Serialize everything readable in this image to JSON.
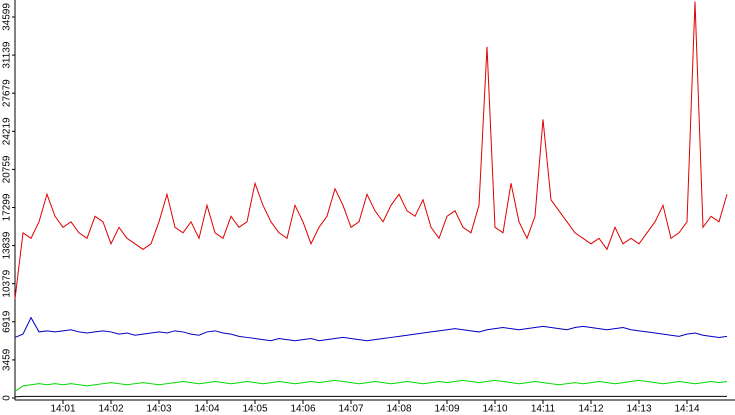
{
  "chart_data": {
    "type": "line",
    "categories": [
      null,
      null,
      null,
      null,
      null,
      null,
      "14:01",
      null,
      null,
      null,
      null,
      null,
      "14:02",
      null,
      null,
      null,
      null,
      null,
      "14:03",
      null,
      null,
      null,
      null,
      null,
      "14:04",
      null,
      null,
      null,
      null,
      null,
      "14:05",
      null,
      null,
      null,
      null,
      null,
      "14:06",
      null,
      null,
      null,
      null,
      null,
      "14:07",
      null,
      null,
      null,
      null,
      null,
      "14:08",
      null,
      null,
      null,
      null,
      null,
      "14:09",
      null,
      null,
      null,
      null,
      null,
      "14:10",
      null,
      null,
      null,
      null,
      null,
      "14:11",
      null,
      null,
      null,
      null,
      null,
      "14:12",
      null,
      null,
      null,
      null,
      null,
      "14:13",
      null,
      null,
      null,
      null,
      null,
      "14:14",
      null,
      null,
      null,
      null,
      null
    ],
    "series": [
      {
        "color": "#e00000",
        "values": [
          9000,
          15000,
          14500,
          16000,
          18500,
          16500,
          15500,
          16000,
          15000,
          14500,
          16500,
          16000,
          14000,
          15500,
          14500,
          14000,
          13500,
          14000,
          16000,
          18500,
          15500,
          15000,
          16000,
          14500,
          17500,
          15000,
          14500,
          16500,
          15500,
          16000,
          19500,
          17500,
          16000,
          15000,
          14500,
          17500,
          16000,
          14000,
          15500,
          16500,
          19000,
          17500,
          15500,
          16000,
          18500,
          17000,
          16000,
          17500,
          18500,
          17000,
          16500,
          18000,
          15500,
          14500,
          16500,
          17000,
          15500,
          15000,
          17500,
          31900,
          15500,
          15000,
          19500,
          16000,
          14500,
          16500,
          25300,
          18000,
          17000,
          16000,
          15000,
          14500,
          14000,
          14500,
          13500,
          15500,
          14000,
          14500,
          14000,
          15000,
          16000,
          17500,
          14500,
          15000,
          16000,
          36000,
          15500,
          16500,
          16000,
          18500
        ]
      },
      {
        "color": "#0000c0",
        "values": [
          5500,
          5800,
          7300,
          6000,
          6100,
          6000,
          6100,
          6200,
          6000,
          5900,
          6000,
          6100,
          6000,
          5800,
          5900,
          5700,
          5800,
          5900,
          6000,
          5900,
          6100,
          6000,
          5800,
          5700,
          6000,
          6100,
          5900,
          5800,
          5600,
          5500,
          5400,
          5300,
          5200,
          5400,
          5300,
          5200,
          5300,
          5400,
          5200,
          5300,
          5400,
          5500,
          5400,
          5300,
          5200,
          5300,
          5400,
          5500,
          5600,
          5700,
          5800,
          5900,
          6000,
          6100,
          6200,
          6300,
          6200,
          6100,
          6000,
          6200,
          6300,
          6400,
          6300,
          6200,
          6300,
          6400,
          6500,
          6400,
          6300,
          6200,
          6400,
          6500,
          6400,
          6300,
          6200,
          6300,
          6400,
          6200,
          6100,
          6000,
          5900,
          5800,
          5700,
          5600,
          5800,
          5900,
          5700,
          5600,
          5500,
          5600
        ]
      },
      {
        "color": "#00d800",
        "values": [
          600,
          1100,
          1200,
          1300,
          1200,
          1300,
          1200,
          1300,
          1200,
          1100,
          1200,
          1300,
          1400,
          1300,
          1200,
          1300,
          1400,
          1300,
          1200,
          1300,
          1400,
          1500,
          1400,
          1300,
          1400,
          1500,
          1400,
          1300,
          1400,
          1500,
          1400,
          1300,
          1400,
          1500,
          1400,
          1300,
          1400,
          1500,
          1400,
          1500,
          1600,
          1500,
          1400,
          1300,
          1400,
          1500,
          1400,
          1300,
          1400,
          1500,
          1400,
          1300,
          1400,
          1500,
          1400,
          1500,
          1600,
          1500,
          1400,
          1500,
          1600,
          1500,
          1400,
          1300,
          1400,
          1500,
          1400,
          1300,
          1200,
          1300,
          1400,
          1300,
          1400,
          1500,
          1400,
          1300,
          1400,
          1500,
          1600,
          1500,
          1400,
          1300,
          1400,
          1500,
          1400,
          1300,
          1400,
          1500,
          1400,
          1500
        ]
      },
      {
        "color": "#000000",
        "values": [
          100,
          150,
          150,
          150,
          150,
          150,
          150,
          150,
          150,
          150,
          150,
          150,
          150,
          150,
          150,
          150,
          150,
          150,
          150,
          150,
          150,
          150,
          150,
          150,
          150,
          150,
          150,
          150,
          150,
          150,
          150,
          150,
          150,
          150,
          150,
          150,
          150,
          150,
          150,
          150,
          150,
          150,
          150,
          150,
          150,
          150,
          150,
          150,
          150,
          150,
          150,
          150,
          150,
          150,
          150,
          150,
          150,
          150,
          150,
          150,
          150,
          150,
          150,
          150,
          150,
          150,
          150,
          150,
          150,
          150,
          150,
          150,
          150,
          150,
          150,
          150,
          150,
          150,
          150,
          150,
          150,
          150,
          150,
          150,
          150,
          150,
          150,
          150,
          150,
          150
        ]
      }
    ],
    "ylim": [
      0,
      34599
    ],
    "yticks": [
      0,
      3459,
      6919,
      10379,
      13839,
      17299,
      20759,
      24219,
      27679,
      31139,
      34599
    ],
    "grid": false
  }
}
